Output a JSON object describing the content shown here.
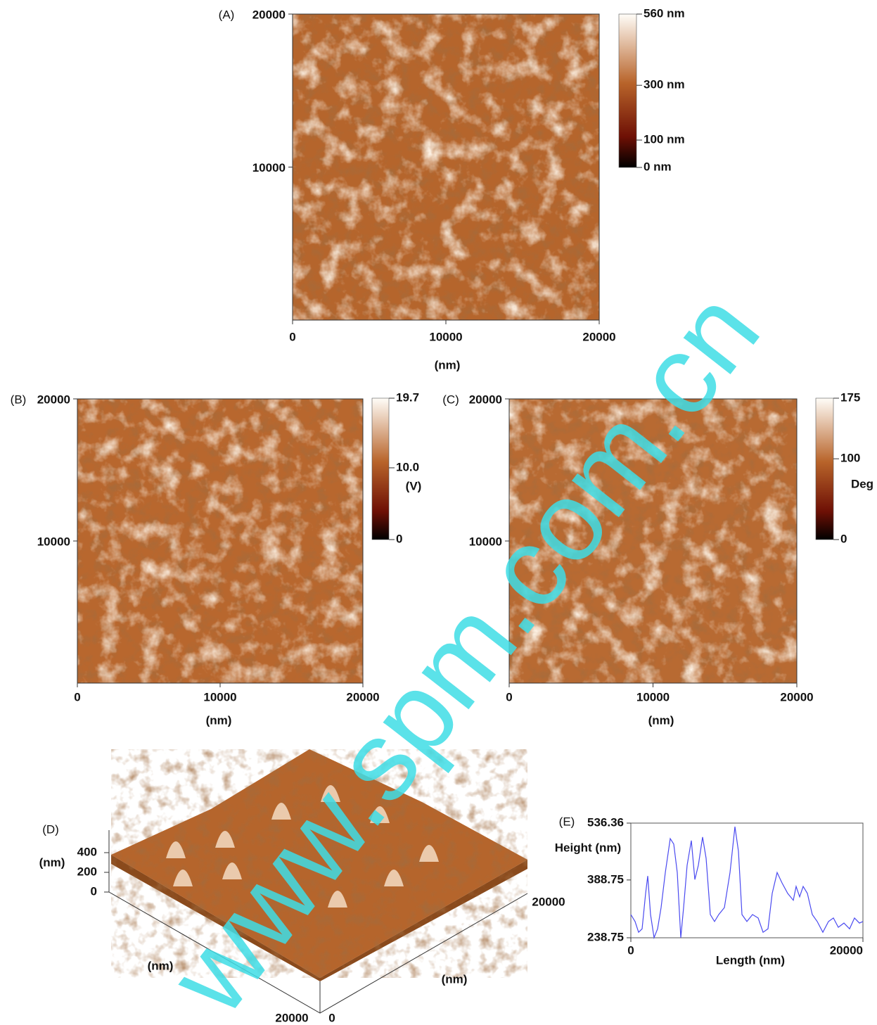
{
  "chart_data": [
    {
      "type": "image",
      "label": "(A)",
      "xlim": [
        0,
        20000
      ],
      "ylim": [
        0,
        20000
      ],
      "xticks": [
        0,
        10000,
        20000
      ],
      "yticks": [
        10000,
        20000
      ],
      "xlabel": "(nm)",
      "colorbar": {
        "lim": [
          0,
          560
        ],
        "ticks": [
          {
            "value": 560,
            "label": "560 nm"
          },
          {
            "value": 300,
            "label": "300 nm"
          },
          {
            "value": 100,
            "label": "100 nm"
          },
          {
            "value": 0,
            "label": "0 nm"
          }
        ]
      }
    },
    {
      "type": "image",
      "label": "(B)",
      "xlim": [
        0,
        20000
      ],
      "ylim": [
        0,
        20000
      ],
      "xticks": [
        0,
        10000,
        20000
      ],
      "yticks": [
        10000,
        20000
      ],
      "xlabel": "(nm)",
      "colorbar": {
        "lim": [
          0,
          19.7
        ],
        "ticks": [
          19.7,
          {
            "value": 10,
            "label": "10.0"
          },
          0
        ],
        "label": "(V)"
      }
    },
    {
      "type": "image",
      "label": "(C)",
      "xlim": [
        0,
        20000
      ],
      "ylim": [
        0,
        20000
      ],
      "xticks": [
        0,
        10000,
        20000
      ],
      "yticks": [
        10000,
        20000
      ],
      "xlabel": "(nm)",
      "colorbar": {
        "lim": [
          0,
          175
        ],
        "ticks": [
          175,
          100,
          0
        ],
        "label": "Deg"
      }
    },
    {
      "type": "surface",
      "label": "(D)",
      "zticks": [
        0,
        200,
        400
      ],
      "zlabel": "(nm)",
      "xticks": [
        20000
      ],
      "yticks": [
        0,
        20000
      ],
      "xlabel": "(nm)",
      "ylabel": "(nm)"
    },
    {
      "type": "line",
      "label": "(E)",
      "ylabel": "Height (nm)",
      "xlabel": "Length (nm)",
      "xlim": [
        0,
        20000
      ],
      "ylim": [
        238.75,
        536.36
      ],
      "xticks": [
        0,
        20000
      ],
      "yticks": [
        238.75,
        388.75,
        536.36
      ],
      "color": "#4a4af0",
      "x": [
        0,
        364,
        667,
        970,
        1273,
        1455,
        1697,
        2000,
        2303,
        2606,
        2970,
        3394,
        3697,
        4000,
        4303,
        4545,
        4848,
        5212,
        5515,
        5818,
        6182,
        6485,
        6848,
        7212,
        7576,
        8061,
        8545,
        8970,
        9273,
        9576,
        10000,
        10485,
        10970,
        11394,
        11818,
        12182,
        12606,
        13030,
        13515,
        14000,
        14242,
        14545,
        14848,
        15212,
        15636,
        16061,
        16545,
        17030,
        17455,
        17879,
        18364,
        18848,
        19273,
        19697,
        20000
      ],
      "values": [
        299,
        281,
        253,
        262,
        354,
        399,
        299,
        239,
        262,
        317,
        408,
        496,
        482,
        408,
        239,
        317,
        427,
        491,
        390,
        427,
        500,
        445,
        299,
        281,
        299,
        317,
        408,
        527,
        463,
        299,
        281,
        299,
        290,
        253,
        262,
        354,
        408,
        381,
        354,
        336,
        372,
        345,
        372,
        354,
        299,
        281,
        253,
        281,
        290,
        266,
        277,
        262,
        290,
        277,
        281
      ]
    }
  ],
  "watermark": "www.spm.com.cn"
}
